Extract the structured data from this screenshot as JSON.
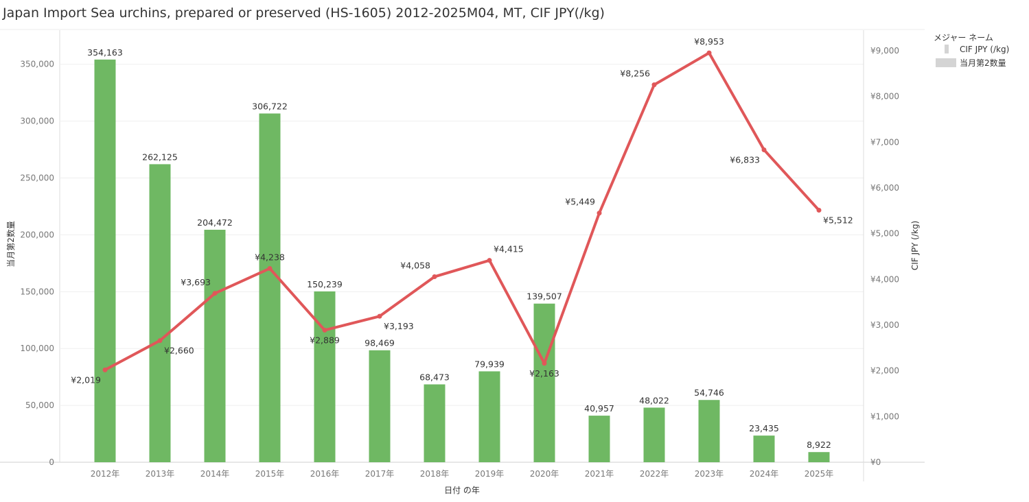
{
  "chart_data": {
    "type": "bar",
    "title": "Japan Import Sea urchins, prepared or preserved (HS-1605) 2012-2025M04, MT, CIF JPY(/kg)",
    "xlabel": "日付 の年",
    "ylabel_left": "当月第2数量",
    "ylabel_right": "CIF JPY (/kg)",
    "categories": [
      "2012年",
      "2013年",
      "2014年",
      "2015年",
      "2016年",
      "2017年",
      "2018年",
      "2019年",
      "2020年",
      "2021年",
      "2022年",
      "2023年",
      "2024年",
      "2025年"
    ],
    "ylim_left": [
      0,
      380000
    ],
    "ylim_right": [
      0,
      9450
    ],
    "left_ticks": [
      {
        "value": 0,
        "label": "0"
      },
      {
        "value": 50000,
        "label": "50,000"
      },
      {
        "value": 100000,
        "label": "100,000"
      },
      {
        "value": 150000,
        "label": "150,000"
      },
      {
        "value": 200000,
        "label": "200,000"
      },
      {
        "value": 250000,
        "label": "250,000"
      },
      {
        "value": 300000,
        "label": "300,000"
      },
      {
        "value": 350000,
        "label": "350,000"
      }
    ],
    "right_ticks": [
      {
        "value": 0,
        "label": "¥0"
      },
      {
        "value": 1000,
        "label": "¥1,000"
      },
      {
        "value": 2000,
        "label": "¥2,000"
      },
      {
        "value": 3000,
        "label": "¥3,000"
      },
      {
        "value": 4000,
        "label": "¥4,000"
      },
      {
        "value": 5000,
        "label": "¥5,000"
      },
      {
        "value": 6000,
        "label": "¥6,000"
      },
      {
        "value": 7000,
        "label": "¥7,000"
      },
      {
        "value": 8000,
        "label": "¥8,000"
      },
      {
        "value": 9000,
        "label": "¥9,000"
      }
    ],
    "series": [
      {
        "name": "当月第2数量",
        "type": "bar",
        "axis": "left",
        "color": "#6fb863",
        "values": [
          354163,
          262125,
          204472,
          306722,
          150239,
          98469,
          68473,
          79939,
          139507,
          40957,
          48022,
          54746,
          23435,
          8922
        ],
        "labels": [
          "354,163",
          "262,125",
          "204,472",
          "306,722",
          "150,239",
          "98,469",
          "68,473",
          "79,939",
          "139,507",
          "40,957",
          "48,022",
          "54,746",
          "23,435",
          "8,922"
        ]
      },
      {
        "name": "CIF JPY (/kg)",
        "type": "line",
        "axis": "right",
        "color": "#e05759",
        "values": [
          2019,
          2660,
          3693,
          4238,
          2889,
          3193,
          4058,
          4415,
          2163,
          5449,
          8256,
          8953,
          6833,
          5512
        ],
        "labels": [
          "¥2,019",
          "¥2,660",
          "¥3,693",
          "¥4,238",
          "¥2,889",
          "¥3,193",
          "¥4,058",
          "¥4,415",
          "¥2,163",
          "¥5,449",
          "¥8,256",
          "¥8,953",
          "¥6,833",
          "¥5,512"
        ],
        "label_positions": [
          "below-left",
          "below-right",
          "above-left",
          "above",
          "below",
          "below-right",
          "above-left",
          "above-right",
          "below",
          "above-left",
          "above-left",
          "above",
          "below-left",
          "below-right"
        ]
      }
    ],
    "legend": {
      "title": "メジャー ネーム",
      "position": "top-right",
      "items": [
        {
          "label": "CIF JPY (/kg)",
          "color": "#e05759"
        },
        {
          "label": "当月第2数量",
          "color": "#d4d4d4"
        }
      ]
    },
    "grid": true
  }
}
